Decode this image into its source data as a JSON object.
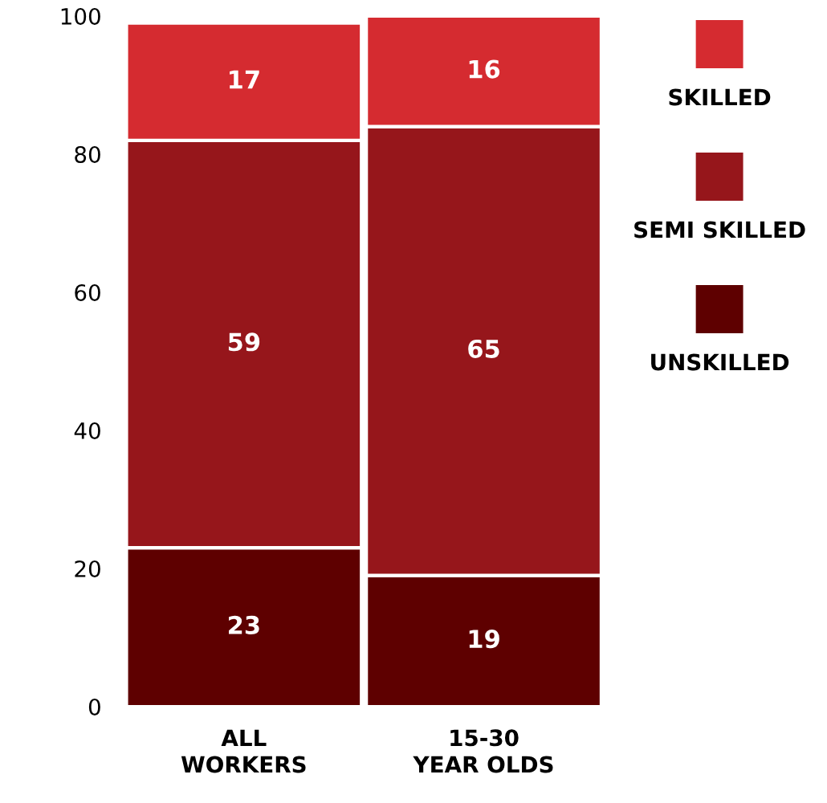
{
  "chart_data": {
    "type": "bar",
    "stacked": true,
    "categories": [
      "ALL\nWORKERS",
      "15-30\nYEAR OLDS"
    ],
    "series": [
      {
        "name": "UNSKILLED",
        "color": "#5e0000",
        "values": [
          23,
          19
        ]
      },
      {
        "name": "SEMI SKILLED",
        "color": "#96161b",
        "values": [
          59,
          65
        ]
      },
      {
        "name": "SKILLED",
        "color": "#d52b30",
        "values": [
          17,
          16
        ]
      }
    ],
    "ylim": [
      0,
      100
    ],
    "yticks": [
      0,
      20,
      40,
      60,
      80,
      100
    ],
    "data_labels": true,
    "legend": "top right",
    "grid": false
  }
}
